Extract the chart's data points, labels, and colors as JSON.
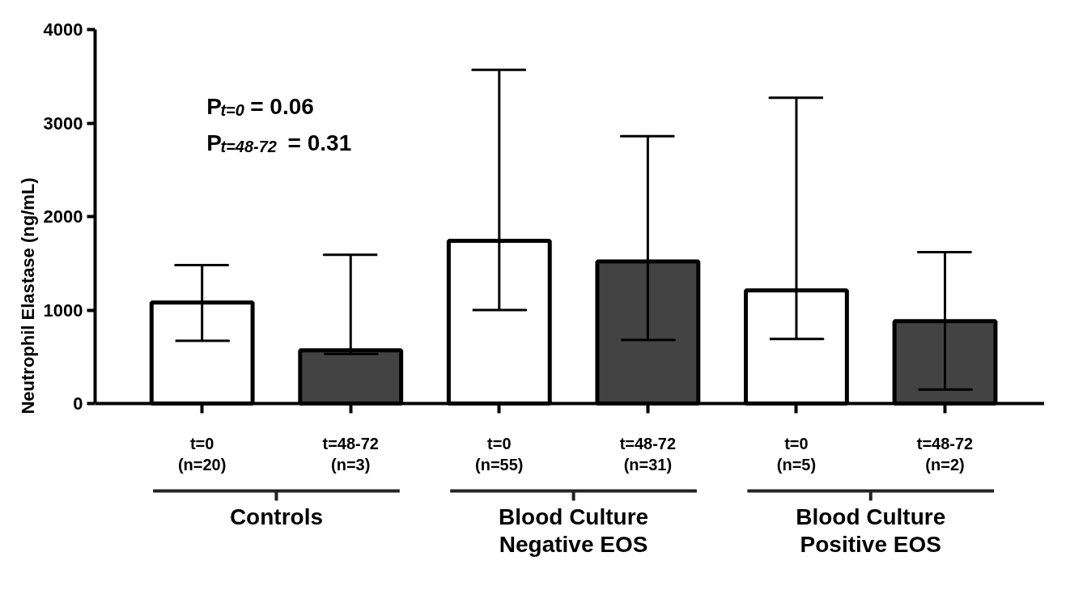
{
  "chart_data": {
    "type": "bar",
    "ylabel": "Neutrophil Elastase (ng/mL)",
    "categories": [
      "t=0\n(n=20)",
      "t=48-72\n(n=3)",
      "t=0\n(n=55)",
      "t=48-72\n(n=31)",
      "t=0\n(n=5)",
      "t=48-72\n(n=2)"
    ],
    "values": [
      1080,
      570,
      1740,
      1520,
      1210,
      880
    ],
    "colors": [
      "#ffffff",
      "#434343",
      "#ffffff",
      "#434343",
      "#ffffff",
      "#434343"
    ],
    "errors": [
      [
        670,
        1480
      ],
      [
        530,
        1590
      ],
      [
        1000,
        3570
      ],
      [
        680,
        2860
      ],
      [
        690,
        3270
      ],
      [
        150,
        1620
      ]
    ],
    "ylim": [
      0,
      4000
    ],
    "yticks": [
      0,
      1000,
      2000,
      3000,
      4000
    ],
    "grid": false,
    "annotations": [
      "P$_{t=0}$ = 0.06",
      "P$_{t=48-72}$ = 0.31",
      "Controls",
      "Blood Culture\nNegative EOS",
      "Blood Culture\nPositive EOS"
    ]
  }
}
